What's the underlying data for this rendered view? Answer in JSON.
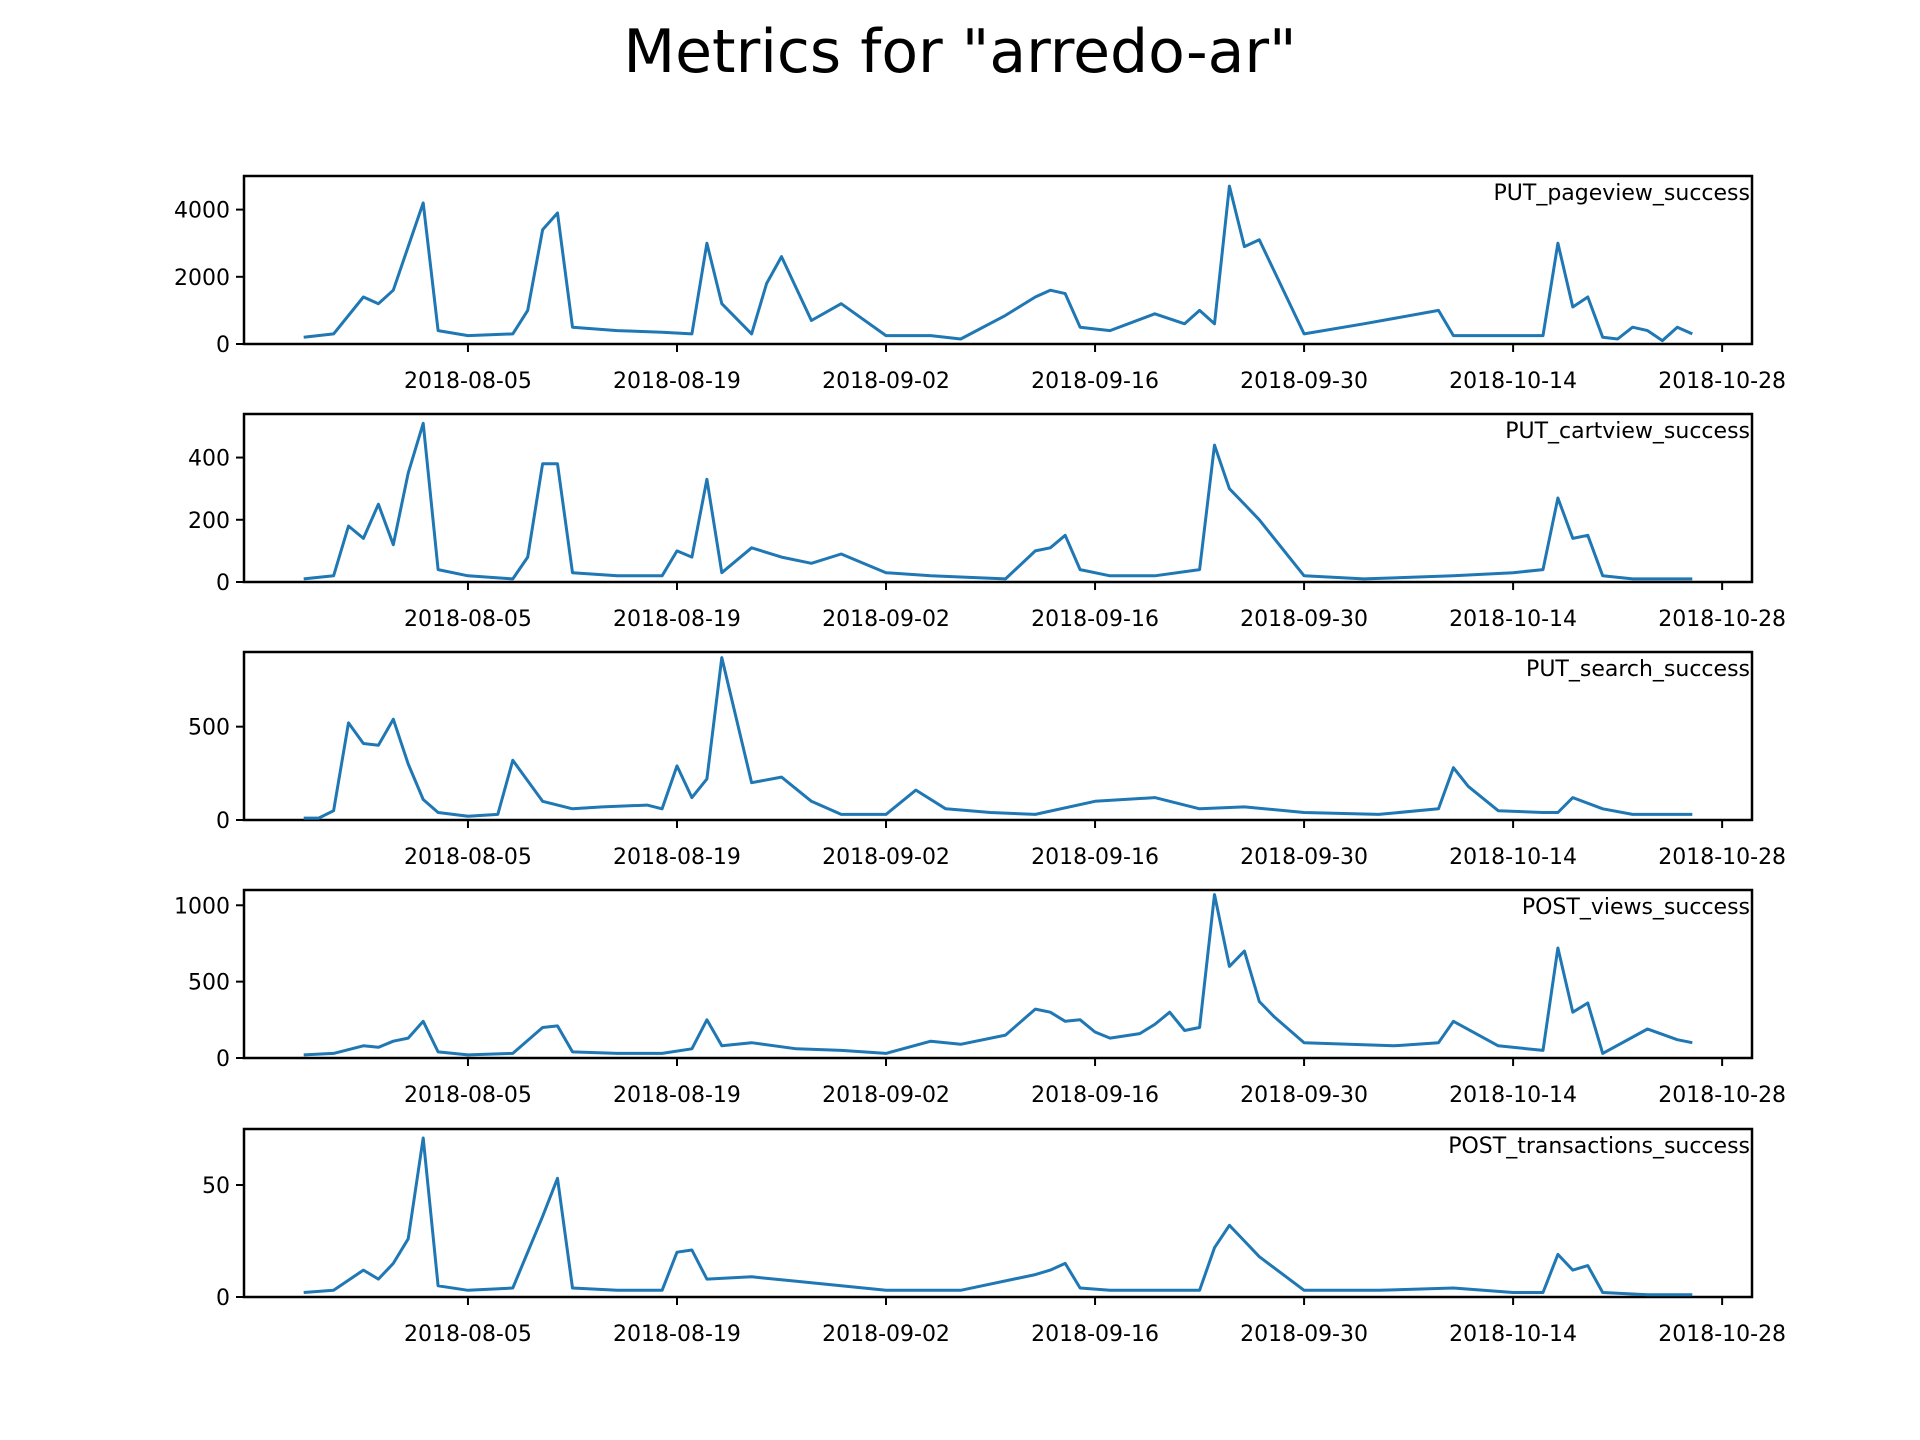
{
  "figure": {
    "title": "Metrics for \"arredo-ar\"",
    "line_color": "#1f77b4"
  },
  "chart_data": [
    {
      "type": "line",
      "series": [
        {
          "name": "PUT_pageview_success",
          "x": [
            "2018-07-25",
            "2018-07-27",
            "2018-07-29",
            "2018-07-30",
            "2018-07-31",
            "2018-08-01",
            "2018-08-02",
            "2018-08-03",
            "2018-08-05",
            "2018-08-08",
            "2018-08-09",
            "2018-08-10",
            "2018-08-11",
            "2018-08-12",
            "2018-08-15",
            "2018-08-18",
            "2018-08-20",
            "2018-08-21",
            "2018-08-22",
            "2018-08-24",
            "2018-08-25",
            "2018-08-26",
            "2018-08-28",
            "2018-08-30",
            "2018-09-02",
            "2018-09-05",
            "2018-09-07",
            "2018-09-10",
            "2018-09-12",
            "2018-09-13",
            "2018-09-14",
            "2018-09-15",
            "2018-09-17",
            "2018-09-20",
            "2018-09-22",
            "2018-09-23",
            "2018-09-24",
            "2018-09-25",
            "2018-09-26",
            "2018-09-27",
            "2018-09-30",
            "2018-10-04",
            "2018-10-09",
            "2018-10-10",
            "2018-10-13",
            "2018-10-16",
            "2018-10-17",
            "2018-10-18",
            "2018-10-19",
            "2018-10-20",
            "2018-10-21",
            "2018-10-22",
            "2018-10-23",
            "2018-10-24",
            "2018-10-25",
            "2018-10-26"
          ],
          "y": [
            200,
            300,
            1400,
            1200,
            1600,
            2900,
            4200,
            400,
            250,
            300,
            1000,
            3400,
            3900,
            500,
            400,
            350,
            300,
            3000,
            1200,
            300,
            1800,
            2600,
            700,
            1200,
            250,
            250,
            150,
            850,
            1400,
            1600,
            1500,
            500,
            400,
            900,
            600,
            1000,
            600,
            4700,
            2900,
            3100,
            300,
            600,
            1000,
            250,
            250,
            250,
            3000,
            1100,
            1400,
            200,
            150,
            500,
            400,
            100,
            500,
            300
          ]
        }
      ],
      "ylim": [
        0,
        5000
      ],
      "yticks": [
        0,
        2000,
        4000
      ],
      "xticks": [
        "2018-08-05",
        "2018-08-19",
        "2018-09-02",
        "2018-09-16",
        "2018-09-30",
        "2018-10-14",
        "2018-10-28"
      ],
      "grid": false,
      "legend": "top-right"
    },
    {
      "type": "line",
      "series": [
        {
          "name": "PUT_cartview_success",
          "x": [
            "2018-07-25",
            "2018-07-27",
            "2018-07-28",
            "2018-07-29",
            "2018-07-30",
            "2018-07-31",
            "2018-08-01",
            "2018-08-02",
            "2018-08-03",
            "2018-08-05",
            "2018-08-08",
            "2018-08-09",
            "2018-08-10",
            "2018-08-11",
            "2018-08-12",
            "2018-08-15",
            "2018-08-18",
            "2018-08-19",
            "2018-08-20",
            "2018-08-21",
            "2018-08-22",
            "2018-08-24",
            "2018-08-26",
            "2018-08-28",
            "2018-08-30",
            "2018-09-02",
            "2018-09-05",
            "2018-09-10",
            "2018-09-12",
            "2018-09-13",
            "2018-09-14",
            "2018-09-15",
            "2018-09-17",
            "2018-09-20",
            "2018-09-23",
            "2018-09-24",
            "2018-09-25",
            "2018-09-26",
            "2018-09-27",
            "2018-09-30",
            "2018-10-04",
            "2018-10-10",
            "2018-10-14",
            "2018-10-16",
            "2018-10-17",
            "2018-10-18",
            "2018-10-19",
            "2018-10-20",
            "2018-10-22",
            "2018-10-26"
          ],
          "y": [
            10,
            20,
            180,
            140,
            250,
            120,
            350,
            510,
            40,
            20,
            10,
            80,
            380,
            380,
            30,
            20,
            20,
            100,
            80,
            330,
            30,
            110,
            80,
            60,
            90,
            30,
            20,
            10,
            100,
            110,
            150,
            40,
            20,
            20,
            40,
            440,
            300,
            250,
            200,
            20,
            10,
            20,
            30,
            40,
            270,
            140,
            150,
            20,
            10,
            10
          ]
        }
      ],
      "ylim": [
        0,
        540
      ],
      "yticks": [
        0,
        200,
        400
      ],
      "xticks": [
        "2018-08-05",
        "2018-08-19",
        "2018-09-02",
        "2018-09-16",
        "2018-09-30",
        "2018-10-14",
        "2018-10-28"
      ],
      "grid": false,
      "legend": "top-right"
    },
    {
      "type": "line",
      "series": [
        {
          "name": "PUT_search_success",
          "x": [
            "2018-07-25",
            "2018-07-26",
            "2018-07-27",
            "2018-07-28",
            "2018-07-29",
            "2018-07-30",
            "2018-07-31",
            "2018-08-01",
            "2018-08-02",
            "2018-08-03",
            "2018-08-05",
            "2018-08-07",
            "2018-08-08",
            "2018-08-10",
            "2018-08-12",
            "2018-08-14",
            "2018-08-17",
            "2018-08-18",
            "2018-08-19",
            "2018-08-20",
            "2018-08-21",
            "2018-08-22",
            "2018-08-24",
            "2018-08-26",
            "2018-08-28",
            "2018-08-30",
            "2018-09-02",
            "2018-09-04",
            "2018-09-06",
            "2018-09-09",
            "2018-09-12",
            "2018-09-16",
            "2018-09-20",
            "2018-09-23",
            "2018-09-26",
            "2018-09-30",
            "2018-10-05",
            "2018-10-09",
            "2018-10-10",
            "2018-10-11",
            "2018-10-13",
            "2018-10-16",
            "2018-10-17",
            "2018-10-18",
            "2018-10-20",
            "2018-10-22",
            "2018-10-26"
          ],
          "y": [
            10,
            10,
            50,
            520,
            410,
            400,
            540,
            300,
            110,
            40,
            20,
            30,
            320,
            100,
            60,
            70,
            80,
            60,
            290,
            120,
            220,
            870,
            200,
            230,
            100,
            30,
            30,
            160,
            60,
            40,
            30,
            100,
            120,
            60,
            70,
            40,
            30,
            60,
            280,
            180,
            50,
            40,
            40,
            120,
            60,
            30,
            30
          ]
        }
      ],
      "ylim": [
        0,
        900
      ],
      "yticks": [
        0,
        500
      ],
      "xticks": [
        "2018-08-05",
        "2018-08-19",
        "2018-09-02",
        "2018-09-16",
        "2018-09-30",
        "2018-10-14",
        "2018-10-28"
      ],
      "grid": false,
      "legend": "top-right"
    },
    {
      "type": "line",
      "series": [
        {
          "name": "POST_views_success",
          "x": [
            "2018-07-25",
            "2018-07-27",
            "2018-07-29",
            "2018-07-30",
            "2018-07-31",
            "2018-08-01",
            "2018-08-02",
            "2018-08-03",
            "2018-08-05",
            "2018-08-08",
            "2018-08-10",
            "2018-08-11",
            "2018-08-12",
            "2018-08-15",
            "2018-08-18",
            "2018-08-20",
            "2018-08-21",
            "2018-08-22",
            "2018-08-24",
            "2018-08-27",
            "2018-08-30",
            "2018-09-02",
            "2018-09-05",
            "2018-09-07",
            "2018-09-10",
            "2018-09-12",
            "2018-09-13",
            "2018-09-14",
            "2018-09-15",
            "2018-09-16",
            "2018-09-17",
            "2018-09-19",
            "2018-09-20",
            "2018-09-21",
            "2018-09-22",
            "2018-09-23",
            "2018-09-24",
            "2018-09-25",
            "2018-09-26",
            "2018-09-27",
            "2018-09-28",
            "2018-09-30",
            "2018-10-03",
            "2018-10-06",
            "2018-10-09",
            "2018-10-10",
            "2018-10-13",
            "2018-10-16",
            "2018-10-17",
            "2018-10-18",
            "2018-10-19",
            "2018-10-20",
            "2018-10-23",
            "2018-10-25",
            "2018-10-26"
          ],
          "y": [
            20,
            30,
            80,
            70,
            110,
            130,
            240,
            40,
            20,
            30,
            200,
            210,
            40,
            30,
            30,
            60,
            250,
            80,
            100,
            60,
            50,
            30,
            110,
            90,
            150,
            320,
            300,
            240,
            250,
            170,
            130,
            160,
            220,
            300,
            180,
            200,
            1070,
            600,
            700,
            370,
            270,
            100,
            90,
            80,
            100,
            240,
            80,
            50,
            720,
            300,
            360,
            30,
            190,
            120,
            100
          ]
        }
      ],
      "ylim": [
        0,
        1100
      ],
      "yticks": [
        0,
        500,
        1000
      ],
      "xticks": [
        "2018-08-05",
        "2018-08-19",
        "2018-09-02",
        "2018-09-16",
        "2018-09-30",
        "2018-10-14",
        "2018-10-28"
      ],
      "grid": false,
      "legend": "top-right"
    },
    {
      "type": "line",
      "series": [
        {
          "name": "POST_transactions_success",
          "x": [
            "2018-07-25",
            "2018-07-27",
            "2018-07-29",
            "2018-07-30",
            "2018-07-31",
            "2018-08-01",
            "2018-08-02",
            "2018-08-03",
            "2018-08-05",
            "2018-08-08",
            "2018-08-10",
            "2018-08-11",
            "2018-08-12",
            "2018-08-15",
            "2018-08-18",
            "2018-08-19",
            "2018-08-20",
            "2018-08-21",
            "2018-08-24",
            "2018-08-27",
            "2018-08-30",
            "2018-09-02",
            "2018-09-07",
            "2018-09-12",
            "2018-09-13",
            "2018-09-14",
            "2018-09-15",
            "2018-09-17",
            "2018-09-20",
            "2018-09-23",
            "2018-09-24",
            "2018-09-25",
            "2018-09-26",
            "2018-09-27",
            "2018-09-30",
            "2018-10-05",
            "2018-10-10",
            "2018-10-14",
            "2018-10-16",
            "2018-10-17",
            "2018-10-18",
            "2018-10-19",
            "2018-10-20",
            "2018-10-23",
            "2018-10-26"
          ],
          "y": [
            2,
            3,
            12,
            8,
            15,
            26,
            71,
            5,
            3,
            4,
            36,
            53,
            4,
            3,
            3,
            20,
            21,
            8,
            9,
            7,
            5,
            3,
            3,
            10,
            12,
            15,
            4,
            3,
            3,
            3,
            22,
            32,
            25,
            18,
            3,
            3,
            4,
            2,
            2,
            19,
            12,
            14,
            2,
            1,
            1
          ]
        }
      ],
      "ylim": [
        0,
        75
      ],
      "yticks": [
        0,
        50
      ],
      "xticks": [
        "2018-08-05",
        "2018-08-19",
        "2018-09-02",
        "2018-09-16",
        "2018-09-30",
        "2018-10-14",
        "2018-10-28"
      ],
      "grid": false,
      "legend": "top-right"
    }
  ]
}
